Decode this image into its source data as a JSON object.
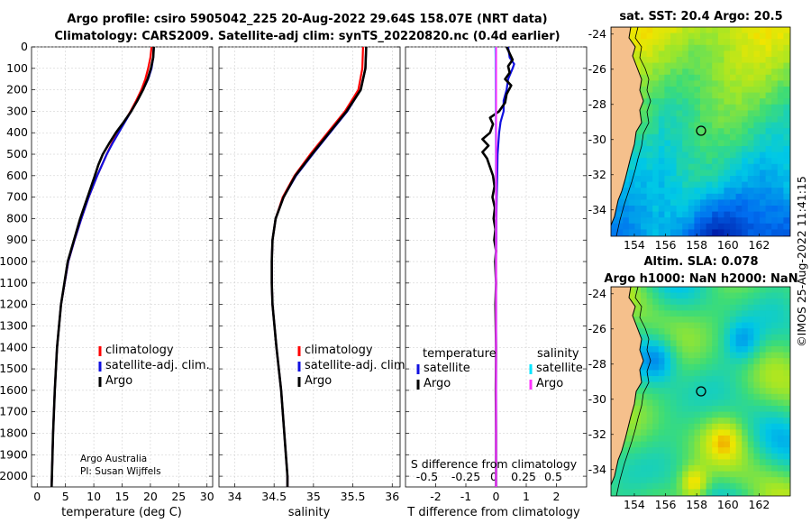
{
  "header": {
    "line1": "Argo profile: csiro 5905042_225 20-Aug-2022 29.64S 158.07E (NRT data)",
    "line2": "Climatology: CARS2009. Satellite-adj clim: synTS_20220820.nc (0.4d earlier)"
  },
  "colors": {
    "climatology": "#ff0000",
    "satellite": "#1010e0",
    "argo": "#000000",
    "sat_sal": "#00e5ff",
    "argo_sal": "#ff33ff",
    "land": "#f5c08c"
  },
  "credits": {
    "org": "Argo Australia",
    "pi": "PI: Susan Wijffels"
  },
  "stamp": "©IMOS 25-Aug-2022 11:41:15",
  "chart_data": [
    {
      "type": "line",
      "id": "temperature",
      "xlabel": "temperature (deg C)",
      "xlim": [
        -1,
        31
      ],
      "ylim": [
        0,
        2050
      ],
      "xticks": [
        0,
        5,
        10,
        15,
        20,
        25,
        30
      ],
      "yticks": [
        0,
        100,
        200,
        300,
        400,
        500,
        600,
        700,
        800,
        900,
        1000,
        1100,
        1200,
        1300,
        1400,
        1500,
        1600,
        1700,
        1800,
        1900,
        2000
      ],
      "legend": [
        "climatology",
        "satellite-adj. clim.",
        "Argo"
      ],
      "series": [
        {
          "name": "climatology",
          "color": "#ff0000",
          "depth": [
            0,
            50,
            100,
            150,
            200,
            250,
            300,
            350,
            400,
            450,
            500,
            600,
            700,
            800,
            900,
            1000,
            1200,
            1400,
            1600,
            1800,
            2000,
            2050
          ],
          "values": [
            20.2,
            20.0,
            19.6,
            19.1,
            18.4,
            17.5,
            16.5,
            15.4,
            14.3,
            13.2,
            12.3,
            10.6,
            9.1,
            7.8,
            6.6,
            5.5,
            4.2,
            3.5,
            3.1,
            2.8,
            2.6,
            2.55
          ]
        },
        {
          "name": "satellite-adj. clim.",
          "color": "#1010e0",
          "depth": [
            0,
            50,
            100,
            150,
            200,
            250,
            300,
            350,
            400,
            450,
            500,
            600,
            700,
            800,
            900,
            1000,
            1200,
            1400,
            1600,
            1800,
            2000,
            2050
          ],
          "values": [
            20.6,
            20.5,
            20.2,
            19.6,
            18.7,
            17.7,
            16.6,
            15.5,
            14.4,
            13.3,
            12.3,
            10.6,
            9.1,
            7.8,
            6.6,
            5.5,
            4.2,
            3.5,
            3.1,
            2.8,
            2.6,
            2.55
          ]
        },
        {
          "name": "Argo",
          "color": "#000000",
          "depth": [
            0,
            50,
            100,
            150,
            200,
            250,
            300,
            350,
            400,
            450,
            500,
            550,
            600,
            700,
            800,
            900,
            1000,
            1200,
            1400,
            1600,
            1800,
            2000,
            2050
          ],
          "values": [
            20.6,
            20.5,
            20.1,
            19.5,
            18.7,
            17.7,
            16.6,
            15.3,
            13.9,
            12.7,
            11.6,
            10.8,
            10.2,
            8.9,
            7.6,
            6.5,
            5.4,
            4.2,
            3.5,
            3.1,
            2.8,
            2.6,
            2.55
          ]
        }
      ]
    },
    {
      "type": "line",
      "id": "salinity",
      "xlabel": "salinity",
      "xlim": [
        33.8,
        36.1
      ],
      "ylim": [
        0,
        2050
      ],
      "xticks": [
        34,
        34.5,
        35,
        35.5,
        36
      ],
      "legend": [
        "climatology",
        "satellite-adj. clim.",
        "Argo"
      ],
      "series": [
        {
          "name": "climatology",
          "color": "#ff0000",
          "depth": [
            0,
            100,
            200,
            300,
            400,
            500,
            600,
            700,
            800,
            900,
            1000,
            1100,
            1200,
            1400,
            1600,
            1800,
            2000,
            2050
          ],
          "values": [
            35.63,
            35.62,
            35.57,
            35.4,
            35.18,
            34.96,
            34.76,
            34.61,
            34.52,
            34.48,
            34.47,
            34.47,
            34.48,
            34.53,
            34.59,
            34.63,
            34.67,
            34.67
          ]
        },
        {
          "name": "satellite-adj. clim.",
          "color": "#1010e0",
          "depth": [
            0,
            100,
            200,
            300,
            400,
            500,
            600,
            700,
            800,
            900,
            1000,
            1100,
            1200,
            1400,
            1600,
            1800,
            2000,
            2050
          ],
          "values": [
            35.67,
            35.66,
            35.6,
            35.43,
            35.21,
            34.99,
            34.78,
            34.62,
            34.52,
            34.48,
            34.47,
            34.47,
            34.48,
            34.53,
            34.59,
            34.63,
            34.67,
            34.67
          ]
        },
        {
          "name": "Argo",
          "color": "#000000",
          "depth": [
            0,
            100,
            200,
            300,
            400,
            500,
            600,
            700,
            800,
            900,
            1000,
            1100,
            1200,
            1400,
            1600,
            1800,
            2000,
            2050
          ],
          "values": [
            35.67,
            35.66,
            35.6,
            35.42,
            35.2,
            34.98,
            34.77,
            34.62,
            34.52,
            34.48,
            34.47,
            34.47,
            34.48,
            34.53,
            34.59,
            34.63,
            34.67,
            34.67
          ]
        }
      ]
    },
    {
      "type": "line",
      "id": "difference",
      "xlabel": "T difference from climatology",
      "s_label": "S difference from climatology",
      "xlim": [
        -3,
        3
      ],
      "ylim": [
        0,
        2050
      ],
      "xticks": [
        -2,
        -1,
        0,
        1,
        2
      ],
      "s_ticks": [
        "-0.5",
        "-0.25",
        "0",
        "0.25",
        "0.5"
      ],
      "legend_temperature_title": "temperature",
      "legend_salinity_title": "salinity",
      "legend_temperature": [
        "satellite",
        "Argo"
      ],
      "legend_salinity": [
        "satellite",
        "Argo"
      ],
      "series": [
        {
          "name": "T satellite",
          "color": "#1010e0",
          "depth": [
            0,
            50,
            80,
            100,
            150,
            200,
            250,
            300,
            350,
            400,
            500,
            600,
            700,
            800,
            900,
            1000,
            1200,
            1500,
            1800,
            2050
          ],
          "values": [
            0.4,
            0.45,
            0.6,
            0.55,
            0.4,
            0.35,
            0.25,
            0.25,
            0.15,
            0.1,
            0.05,
            0.04,
            0.02,
            0.01,
            0.01,
            0.0,
            0.0,
            0.0,
            0.0,
            0.0
          ]
        },
        {
          "name": "T Argo",
          "color": "#000000",
          "depth": [
            0,
            60,
            90,
            120,
            150,
            180,
            220,
            260,
            300,
            330,
            360,
            400,
            430,
            460,
            490,
            520,
            560,
            600,
            650,
            700,
            750,
            800,
            850,
            900,
            950,
            1000,
            1100,
            1200,
            1400,
            1600,
            1800,
            2000,
            2050
          ],
          "values": [
            0.35,
            0.55,
            0.4,
            0.45,
            0.3,
            0.5,
            0.35,
            0.3,
            0.1,
            -0.2,
            -0.1,
            -0.2,
            -0.45,
            -0.25,
            -0.45,
            -0.3,
            -0.2,
            -0.1,
            -0.05,
            -0.12,
            -0.04,
            -0.08,
            -0.02,
            -0.06,
            0.0,
            -0.03,
            0.0,
            -0.02,
            0.0,
            -0.01,
            0.0,
            0.0,
            0.0
          ]
        },
        {
          "name": "S satellite",
          "color": "#00e5ff",
          "depth": [
            0,
            50,
            100,
            200,
            300,
            400,
            500,
            600,
            800,
            1000,
            1200,
            1600,
            2050
          ],
          "values": [
            -0.02,
            -0.015,
            -0.015,
            -0.012,
            -0.01,
            -0.008,
            -0.006,
            -0.005,
            -0.003,
            -0.002,
            -0.001,
            0.0,
            0.0
          ]
        },
        {
          "name": "S Argo",
          "color": "#ff33ff",
          "depth": [
            0,
            2050
          ],
          "values": [
            0,
            0
          ]
        }
      ]
    },
    {
      "type": "heatmap",
      "id": "sst-map",
      "title": "sat. SST: 20.4 Argo: 20.5",
      "xlim": [
        152.5,
        164
      ],
      "ylim": [
        -35.5,
        -23.6
      ],
      "xticks": [
        154,
        156,
        158,
        160,
        162
      ],
      "yticks": [
        -24,
        -26,
        -28,
        -30,
        -32,
        -34
      ],
      "argo_position": [
        158.07,
        -29.64
      ]
    },
    {
      "type": "heatmap",
      "id": "sla-map",
      "title1": "Altim. SLA: 0.078",
      "title2": "Argo h1000: NaN h2000: NaN",
      "xlim": [
        152.5,
        164
      ],
      "ylim": [
        -35.5,
        -23.6
      ],
      "xticks": [
        154,
        156,
        158,
        160,
        162
      ],
      "yticks": [
        -24,
        -26,
        -28,
        -30,
        -32,
        -34
      ],
      "argo_position": [
        158.07,
        -29.64
      ]
    }
  ]
}
